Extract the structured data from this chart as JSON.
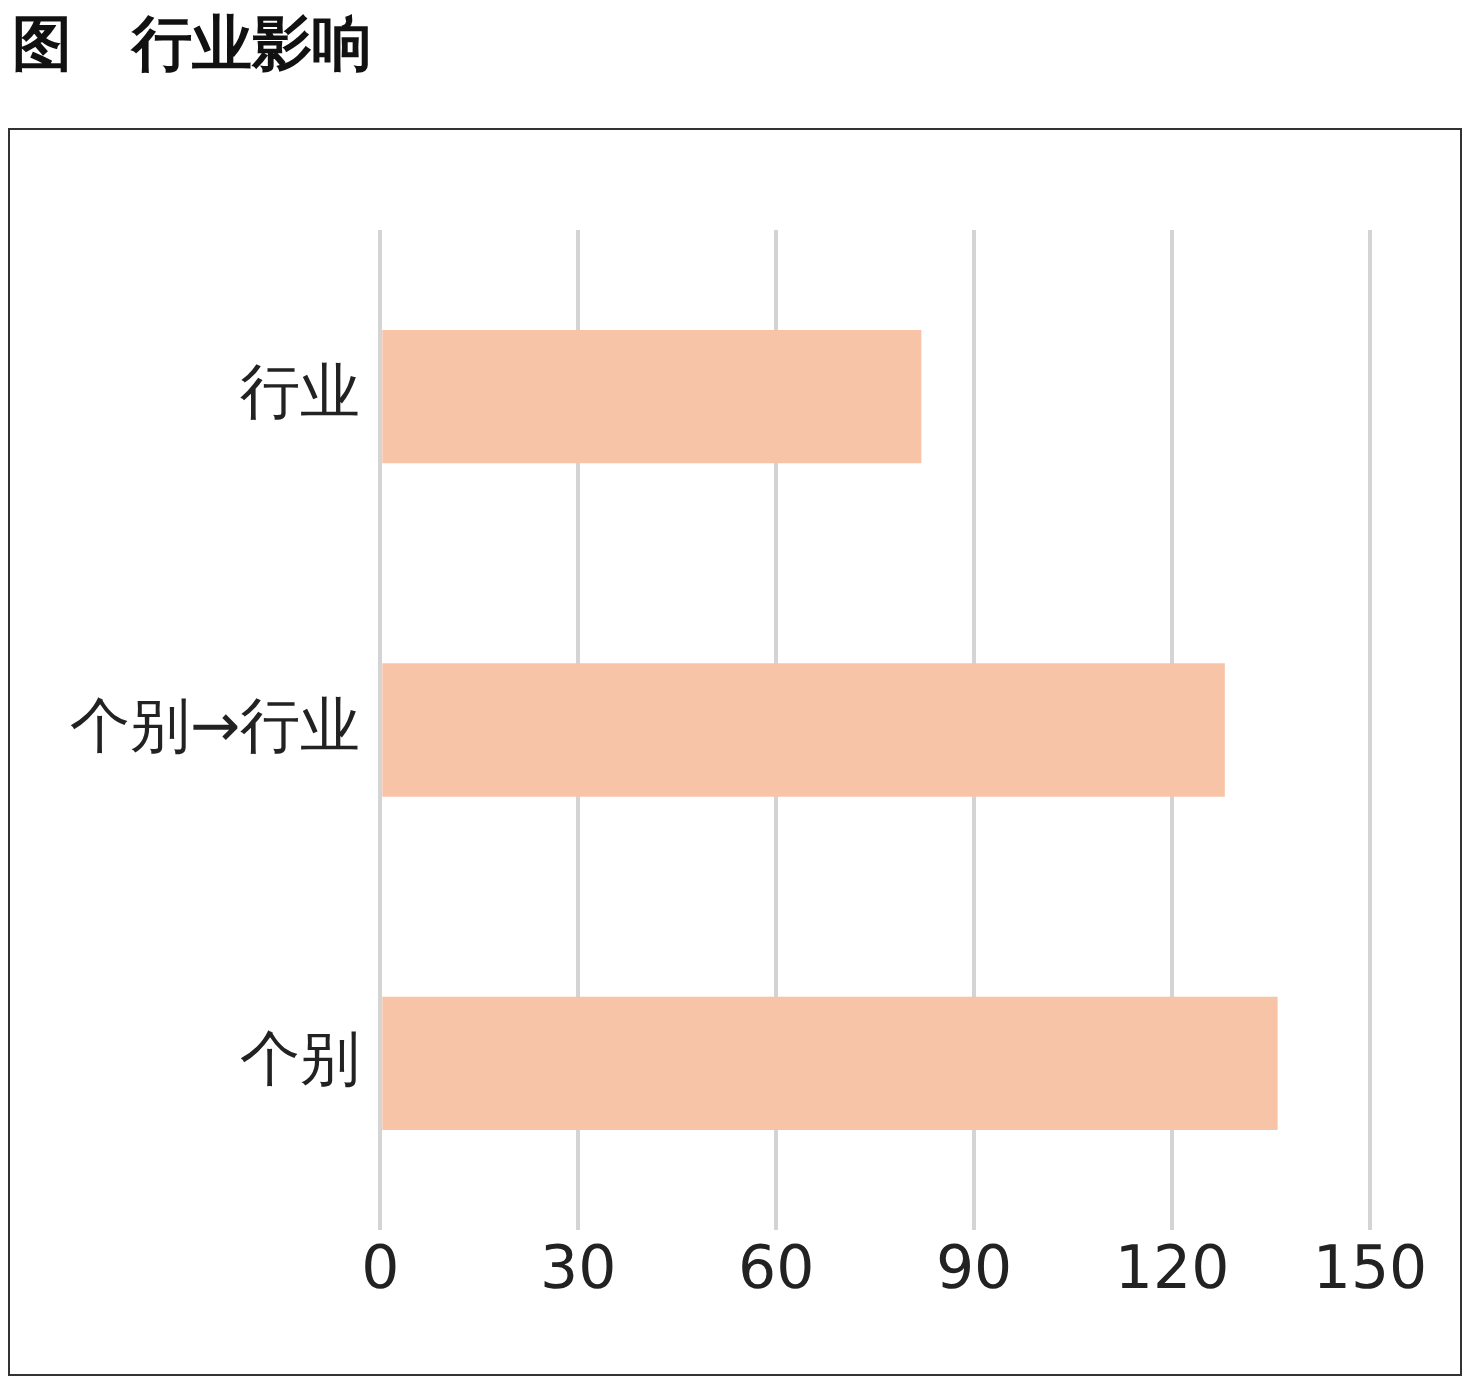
{
  "chart_data": {
    "type": "bar",
    "orientation": "horizontal",
    "title": "图　行业影响",
    "categories": [
      "行业",
      "个别→行业",
      "个别"
    ],
    "values": [
      82,
      128,
      136
    ],
    "color": "#f8c4a8",
    "xlim": [
      0,
      150
    ],
    "xticks": [
      0,
      30,
      60,
      90,
      120,
      150
    ],
    "grid": "x",
    "legend": false
  }
}
